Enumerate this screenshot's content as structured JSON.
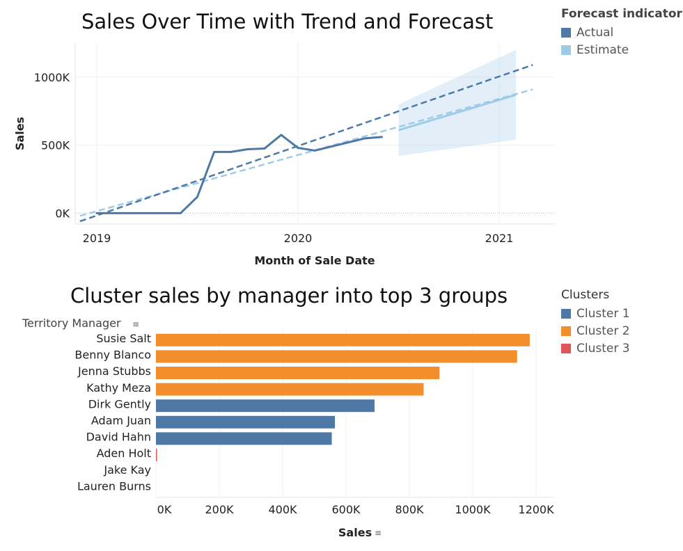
{
  "chart_data": [
    {
      "type": "line",
      "title": "Sales Over Time with Trend and Forecast",
      "xlabel": "Month of Sale Date",
      "ylabel": "Sales",
      "x_ticks": [
        "2019",
        "2020",
        "2021"
      ],
      "y_ticks": [
        "0K",
        "500K",
        "1000K"
      ],
      "ylim": [
        -80000,
        1250000
      ],
      "grid": true,
      "legend_title": "Forecast indicator",
      "legend": [
        {
          "name": "Actual",
          "color": "#4e79a7"
        },
        {
          "name": "Estimate",
          "color": "#a0cbe8"
        }
      ],
      "series": [
        {
          "name": "Actual",
          "x": [
            "2019-01",
            "2019-02",
            "2019-03",
            "2019-04",
            "2019-05",
            "2019-06",
            "2019-07",
            "2019-08",
            "2019-09",
            "2019-10",
            "2019-11",
            "2019-12",
            "2020-01",
            "2020-02",
            "2020-03",
            "2020-04",
            "2020-05",
            "2020-06"
          ],
          "values": [
            0,
            0,
            0,
            0,
            0,
            0,
            120000,
            450000,
            450000,
            470000,
            475000,
            575000,
            480000,
            460000,
            490000,
            520000,
            550000,
            560000
          ]
        }
      ],
      "actual_trend": {
        "x": [
          "2018-12",
          "2021-03"
        ],
        "values": [
          -60000,
          1090000
        ]
      },
      "estimate_trend": {
        "x": [
          "2018-12",
          "2021-03"
        ],
        "values": [
          -20000,
          910000
        ]
      },
      "forecast": {
        "x": [
          "2020-07",
          "2021-02"
        ],
        "estimate": [
          610000,
          870000
        ],
        "lower": [
          420000,
          540000
        ],
        "upper": [
          800000,
          1200000
        ]
      }
    },
    {
      "type": "bar",
      "title": "Cluster sales by manager into top 3 groups",
      "xlabel": "Sales",
      "categories_label": "Territory Manager",
      "categories": [
        "Susie Salt",
        "Benny Blanco",
        "Jenna Stubbs",
        "Kathy Meza",
        "Dirk Gently",
        "Adam Juan",
        "David Hahn",
        "Aden Holt",
        "Jake Kay",
        "Lauren Burns"
      ],
      "values": [
        1180000,
        1140000,
        895000,
        845000,
        690000,
        565000,
        555000,
        2000,
        0,
        0
      ],
      "clusters": [
        "Cluster 2",
        "Cluster 2",
        "Cluster 2",
        "Cluster 2",
        "Cluster 1",
        "Cluster 1",
        "Cluster 1",
        "Cluster 3",
        "Cluster 3",
        "Cluster 3"
      ],
      "x_ticks": [
        "0K",
        "200K",
        "400K",
        "600K",
        "800K",
        "1000K",
        "1200K"
      ],
      "xlim": [
        0,
        1240000
      ],
      "legend_title": "Clusters",
      "legend": [
        {
          "name": "Cluster 1",
          "color": "#4e79a7"
        },
        {
          "name": "Cluster 2",
          "color": "#f28e2b"
        },
        {
          "name": "Cluster 3",
          "color": "#e15759"
        }
      ]
    }
  ]
}
